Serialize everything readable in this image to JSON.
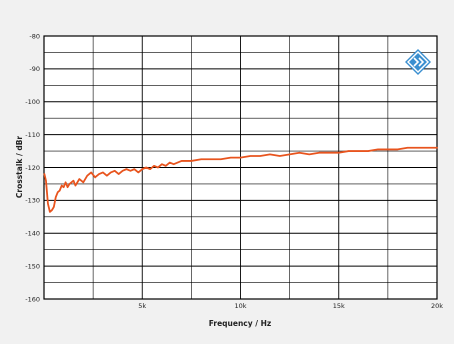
{
  "chart_data": {
    "type": "line",
    "title": "",
    "xlabel": "Frequency / Hz",
    "ylabel": "Crosstalk / dBr",
    "xlim": [
      0,
      20000
    ],
    "ylim": [
      -160,
      -80
    ],
    "x_ticks": [
      5000,
      10000,
      15000,
      20000
    ],
    "x_tick_labels": [
      "5k",
      "10k",
      "15k",
      "20k"
    ],
    "y_ticks": [
      -80,
      -90,
      -100,
      -110,
      -120,
      -130,
      -140,
      -150,
      -160
    ],
    "y_tick_labels": [
      "-80",
      "-90",
      "-100",
      "-110",
      "-120",
      "-130",
      "-140",
      "-150",
      "-160"
    ],
    "grid": true,
    "legend": false,
    "series": [
      {
        "color": "#e8541e",
        "x": [
          20,
          100,
          200,
          300,
          400,
          500,
          600,
          700,
          800,
          900,
          1000,
          1100,
          1200,
          1300,
          1400,
          1500,
          1600,
          1800,
          2000,
          2200,
          2400,
          2600,
          2800,
          3000,
          3200,
          3400,
          3600,
          3800,
          4000,
          4200,
          4400,
          4600,
          4800,
          5000,
          5200,
          5400,
          5600,
          5800,
          6000,
          6200,
          6400,
          6600,
          6800,
          7000,
          7500,
          8000,
          8500,
          9000,
          9500,
          10000,
          10500,
          11000,
          11500,
          12000,
          12500,
          13000,
          13500,
          14000,
          14500,
          15000,
          15500,
          16000,
          16500,
          17000,
          17500,
          18000,
          18500,
          19000,
          19500,
          20000
        ],
        "y": [
          -122,
          -124,
          -131,
          -133.5,
          -133,
          -132,
          -129,
          -127.5,
          -127,
          -125.5,
          -126,
          -124.5,
          -126,
          -125,
          -124.5,
          -124,
          -125.5,
          -123.5,
          -124.5,
          -122.5,
          -121.5,
          -123,
          -122,
          -121.5,
          -122.5,
          -121.5,
          -121,
          -122,
          -121,
          -120.5,
          -121,
          -120.5,
          -121.5,
          -120.5,
          -120,
          -120.5,
          -119.5,
          -120,
          -119,
          -119.5,
          -118.5,
          -119,
          -118.5,
          -118,
          -118,
          -117.5,
          -117.5,
          -117.5,
          -117,
          -117,
          -116.5,
          -116.5,
          -116,
          -116.5,
          -116,
          -115.5,
          -116,
          -115.5,
          -115.5,
          -115.5,
          -115,
          -115,
          -115,
          -114.5,
          -114.5,
          -114.5,
          -114,
          -114,
          -114,
          -114
        ]
      }
    ]
  },
  "logo": {
    "icon": "diamond-brand-logo-icon",
    "color": "#3a8fd0"
  }
}
